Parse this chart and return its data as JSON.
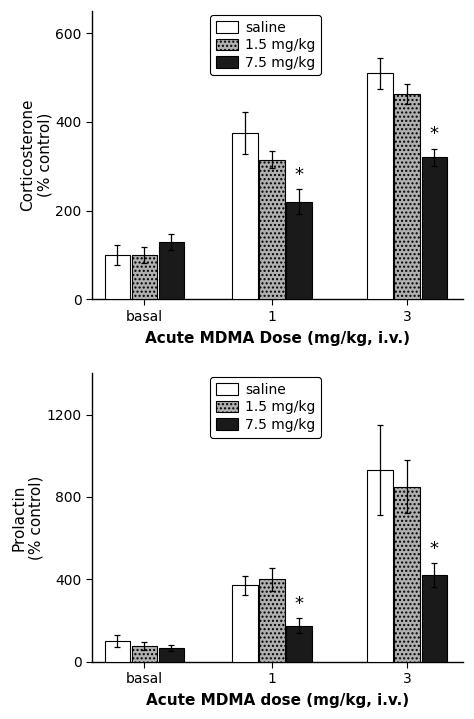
{
  "top": {
    "ylabel": "Corticosterone\n(% control)",
    "xlabel": "Acute MDMA Dose (mg/kg, i.v.)",
    "yticks": [
      0,
      200,
      400,
      600
    ],
    "ylim": [
      0,
      650
    ],
    "xtick_labels": [
      "basal",
      "1",
      "3"
    ],
    "values_saline": [
      100,
      375,
      510
    ],
    "values_mid": [
      100,
      315,
      463
    ],
    "values_high": [
      130,
      220,
      320
    ],
    "errors_saline": [
      22,
      48,
      35
    ],
    "errors_mid": [
      18,
      20,
      22
    ],
    "errors_high": [
      18,
      28,
      20
    ],
    "star_groups": [
      1,
      2
    ],
    "star_values": [
      220,
      320
    ],
    "star_errors": [
      28,
      20
    ]
  },
  "bottom": {
    "ylabel": "Prolactin\n(% control)",
    "xlabel": "Acute MDMA dose (mg/kg, i.v.)",
    "yticks": [
      0,
      400,
      800,
      1200
    ],
    "ylim": [
      0,
      1400
    ],
    "xtick_labels": [
      "basal",
      "1",
      "3"
    ],
    "values_saline": [
      100,
      370,
      930
    ],
    "values_mid": [
      75,
      400,
      850
    ],
    "values_high": [
      65,
      175,
      420
    ],
    "errors_saline": [
      28,
      45,
      220
    ],
    "errors_mid": [
      20,
      55,
      130
    ],
    "errors_high": [
      15,
      38,
      60
    ],
    "star_groups": [
      1,
      2
    ],
    "star_values": [
      175,
      420
    ],
    "star_errors": [
      38,
      60
    ]
  },
  "legend_labels": [
    "saline",
    "1.5 mg/kg",
    "7.5 mg/kg"
  ],
  "bar_width": 0.18,
  "group_positions": [
    0.0,
    0.85,
    1.75
  ],
  "xlim": [
    -0.35,
    2.12
  ],
  "tick_fontsize": 10,
  "label_fontsize": 11,
  "legend_fontsize": 10
}
